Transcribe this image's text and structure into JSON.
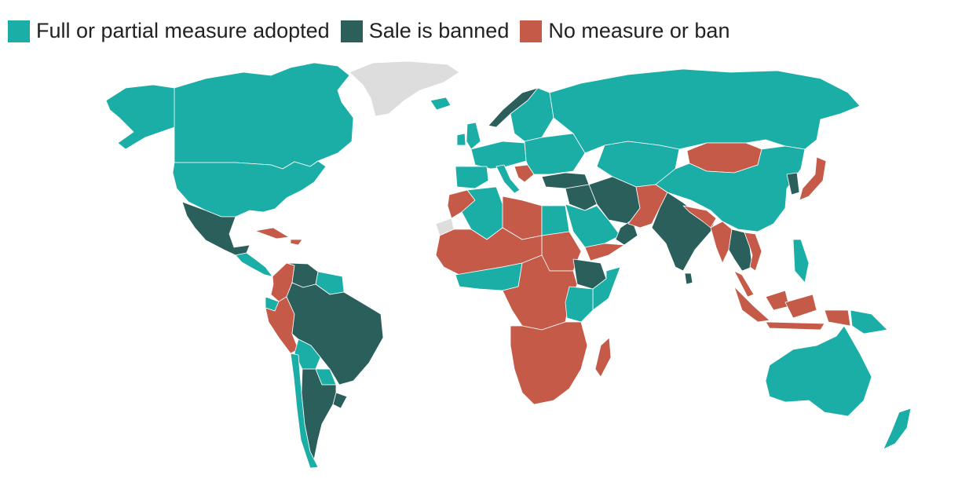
{
  "legend": [
    {
      "label": "Full or partial measure adopted",
      "color": "#1aaea6"
    },
    {
      "label": "Sale is banned",
      "color": "#2a5f5b"
    },
    {
      "label": "No measure or ban",
      "color": "#c65a48"
    }
  ],
  "no_data_color": "#dddddd",
  "regions": [
    {
      "name": "Canada",
      "status": "measure"
    },
    {
      "name": "Alaska",
      "status": "measure"
    },
    {
      "name": "United States",
      "status": "measure"
    },
    {
      "name": "Greenland",
      "status": "no-data"
    },
    {
      "name": "Mexico",
      "status": "banned"
    },
    {
      "name": "Central America",
      "status": "mixed"
    },
    {
      "name": "Cuba and Caribbean",
      "status": "none"
    },
    {
      "name": "Colombia",
      "status": "none"
    },
    {
      "name": "Venezuela",
      "status": "banned"
    },
    {
      "name": "Guianas",
      "status": "measure"
    },
    {
      "name": "Ecuador",
      "status": "measure"
    },
    {
      "name": "Peru",
      "status": "none"
    },
    {
      "name": "Brazil",
      "status": "banned"
    },
    {
      "name": "Bolivia",
      "status": "measure"
    },
    {
      "name": "Paraguay",
      "status": "measure"
    },
    {
      "name": "Uruguay",
      "status": "banned"
    },
    {
      "name": "Chile",
      "status": "measure"
    },
    {
      "name": "Argentina",
      "status": "banned"
    },
    {
      "name": "Iceland",
      "status": "measure"
    },
    {
      "name": "Norway",
      "status": "banned"
    },
    {
      "name": "Sweden and Finland",
      "status": "measure"
    },
    {
      "name": "United Kingdom",
      "status": "measure"
    },
    {
      "name": "Ireland",
      "status": "measure"
    },
    {
      "name": "Western Europe",
      "status": "measure"
    },
    {
      "name": "Iberia",
      "status": "measure"
    },
    {
      "name": "Italy",
      "status": "measure"
    },
    {
      "name": "Balkans",
      "status": "mixed"
    },
    {
      "name": "Eastern Europe",
      "status": "measure"
    },
    {
      "name": "Russia",
      "status": "measure"
    },
    {
      "name": "Turkey",
      "status": "banned"
    },
    {
      "name": "Central Asia",
      "status": "mixed"
    },
    {
      "name": "Iran",
      "status": "banned"
    },
    {
      "name": "Iraq and Syria",
      "status": "banned"
    },
    {
      "name": "Saudi Arabia",
      "status": "measure"
    },
    {
      "name": "Oman",
      "status": "banned"
    },
    {
      "name": "Yemen",
      "status": "none"
    },
    {
      "name": "Afghanistan and Pakistan",
      "status": "none"
    },
    {
      "name": "India",
      "status": "banned"
    },
    {
      "name": "Sri Lanka",
      "status": "banned"
    },
    {
      "name": "Nepal and Bangladesh",
      "status": "none"
    },
    {
      "name": "Mongolia",
      "status": "none"
    },
    {
      "name": "China",
      "status": "measure"
    },
    {
      "name": "Korea",
      "status": "banned"
    },
    {
      "name": "Japan",
      "status": "none"
    },
    {
      "name": "Myanmar",
      "status": "none"
    },
    {
      "name": "Thailand, Laos, Cambodia",
      "status": "banned"
    },
    {
      "name": "Vietnam",
      "status": "none"
    },
    {
      "name": "Malaysia",
      "status": "none"
    },
    {
      "name": "Indonesia",
      "status": "none"
    },
    {
      "name": "Philippines",
      "status": "measure"
    },
    {
      "name": "Papua New Guinea",
      "status": "measure"
    },
    {
      "name": "Australia",
      "status": "measure"
    },
    {
      "name": "New Zealand",
      "status": "measure"
    },
    {
      "name": "Morocco",
      "status": "none"
    },
    {
      "name": "Western Sahara",
      "status": "no-data"
    },
    {
      "name": "Algeria",
      "status": "measure"
    },
    {
      "name": "Libya",
      "status": "none"
    },
    {
      "name": "Egypt",
      "status": "measure"
    },
    {
      "name": "Sudan",
      "status": "none"
    },
    {
      "name": "Ethiopia",
      "status": "banned"
    },
    {
      "name": "Somalia",
      "status": "measure"
    },
    {
      "name": "Sahel",
      "status": "none"
    },
    {
      "name": "West Africa",
      "status": "mixed"
    },
    {
      "name": "Central Africa",
      "status": "mixed"
    },
    {
      "name": "East Africa",
      "status": "mixed"
    },
    {
      "name": "Southern Africa",
      "status": "none"
    },
    {
      "name": "Madagascar",
      "status": "none"
    }
  ]
}
